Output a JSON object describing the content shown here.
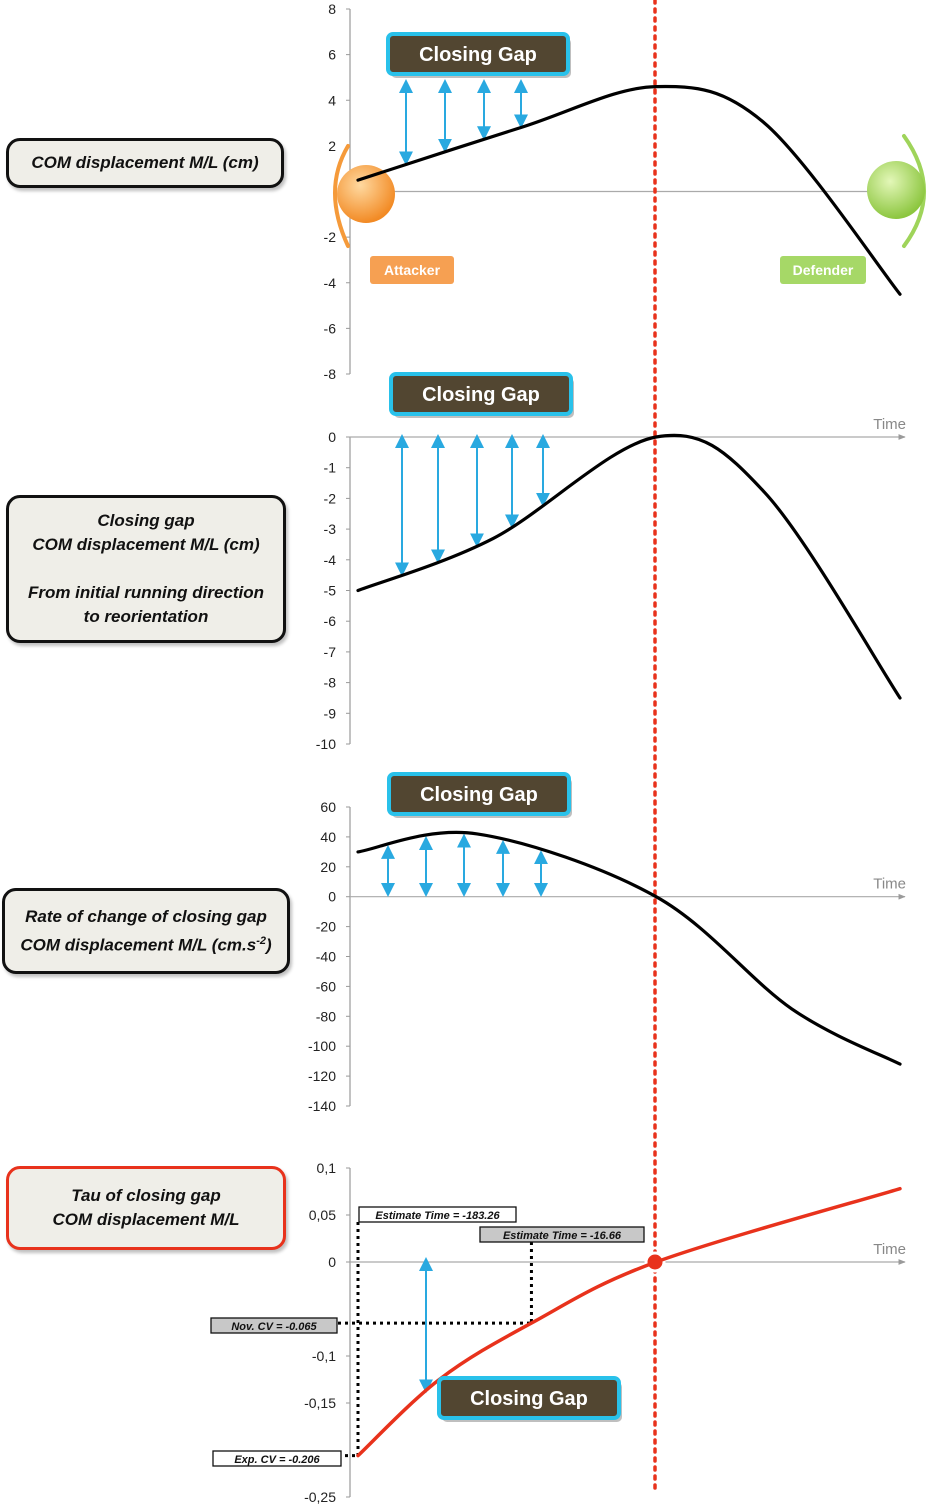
{
  "labels": {
    "panel1": "COM displacement M/L (cm)",
    "panel2_line1": "Closing gap",
    "panel2_line2": "COM displacement M/L (cm)",
    "panel2_line3": "From initial running direction",
    "panel2_line4": "to reorientation",
    "panel3_line1": "Rate of change of closing gap",
    "panel3_line2": "COM displacement M/L (cm.s",
    "panel3_sup": "-2",
    "panel3_close": ")",
    "panel4_line1": "Tau of closing gap",
    "panel4_line2": "COM displacement M/L"
  },
  "colors": {
    "curve": "#000000",
    "tau_curve": "#e8321c",
    "arrows": "#29a9e0",
    "dotted_line": "#e8321c",
    "gap_box": "#524631",
    "gap_box_border": "#29c1ea",
    "attacker": "#f59a3a",
    "defender": "#9fd45a"
  },
  "chart_data": [
    {
      "type": "line",
      "series": [
        {
          "x": [
            0.0,
            0.3,
            0.55,
            0.75,
            1.0
          ],
          "y": [
            0.5,
            2.8,
            4.6,
            3.0,
            -4.5
          ]
        }
      ],
      "ylim": [
        -8,
        8
      ],
      "yticks": [
        "8",
        "6",
        "4",
        "2",
        "-2",
        "-4",
        "-6",
        "-8"
      ],
      "xlabel": "",
      "annotations": {
        "gap_label": "Closing Gap",
        "attacker": "Attacker",
        "defender": "Defender"
      }
    },
    {
      "type": "line",
      "series": [
        {
          "x": [
            0.0,
            0.25,
            0.55,
            0.75,
            1.0
          ],
          "y": [
            -5.0,
            -3.3,
            0.0,
            -1.8,
            -8.5
          ]
        }
      ],
      "ylim": [
        -10,
        0
      ],
      "yticks": [
        "0",
        "-1",
        "-2",
        "-3",
        "-4",
        "-5",
        "-6",
        "-7",
        "-8",
        "-9",
        "-10"
      ],
      "xlabel": "Time",
      "annotations": {
        "gap_label": "Closing Gap"
      }
    },
    {
      "type": "line",
      "series": [
        {
          "x": [
            0.0,
            0.22,
            0.55,
            0.8,
            1.0
          ],
          "y": [
            30,
            42,
            0,
            -75,
            -112
          ]
        }
      ],
      "ylim": [
        -140,
        60
      ],
      "yticks": [
        "60",
        "40",
        "20",
        "0",
        "-20",
        "-40",
        "-60",
        "-80",
        "-100",
        "-120",
        "-140"
      ],
      "xlabel": "Time",
      "annotations": {
        "gap_label": "Closing Gap"
      }
    },
    {
      "type": "line",
      "series": [
        {
          "x": [
            0.0,
            0.15,
            0.32,
            0.55,
            1.0
          ],
          "y": [
            -0.206,
            -0.125,
            -0.065,
            0.0,
            0.078
          ]
        }
      ],
      "ylim": [
        -0.25,
        0.1
      ],
      "yticks": [
        "0,1",
        "0,05",
        "0",
        "-0,1",
        "-0,15",
        "-0,25"
      ],
      "xlabel": "Time",
      "annotations": {
        "gap_label": "Closing Gap",
        "estimate_time_1": "Estimate Time = -183.26",
        "estimate_time_2": "Estimate Time = -16.66",
        "nov_cv": "Nov. CV = -0.065",
        "exp_cv": "Exp. CV = -0.206"
      }
    }
  ]
}
